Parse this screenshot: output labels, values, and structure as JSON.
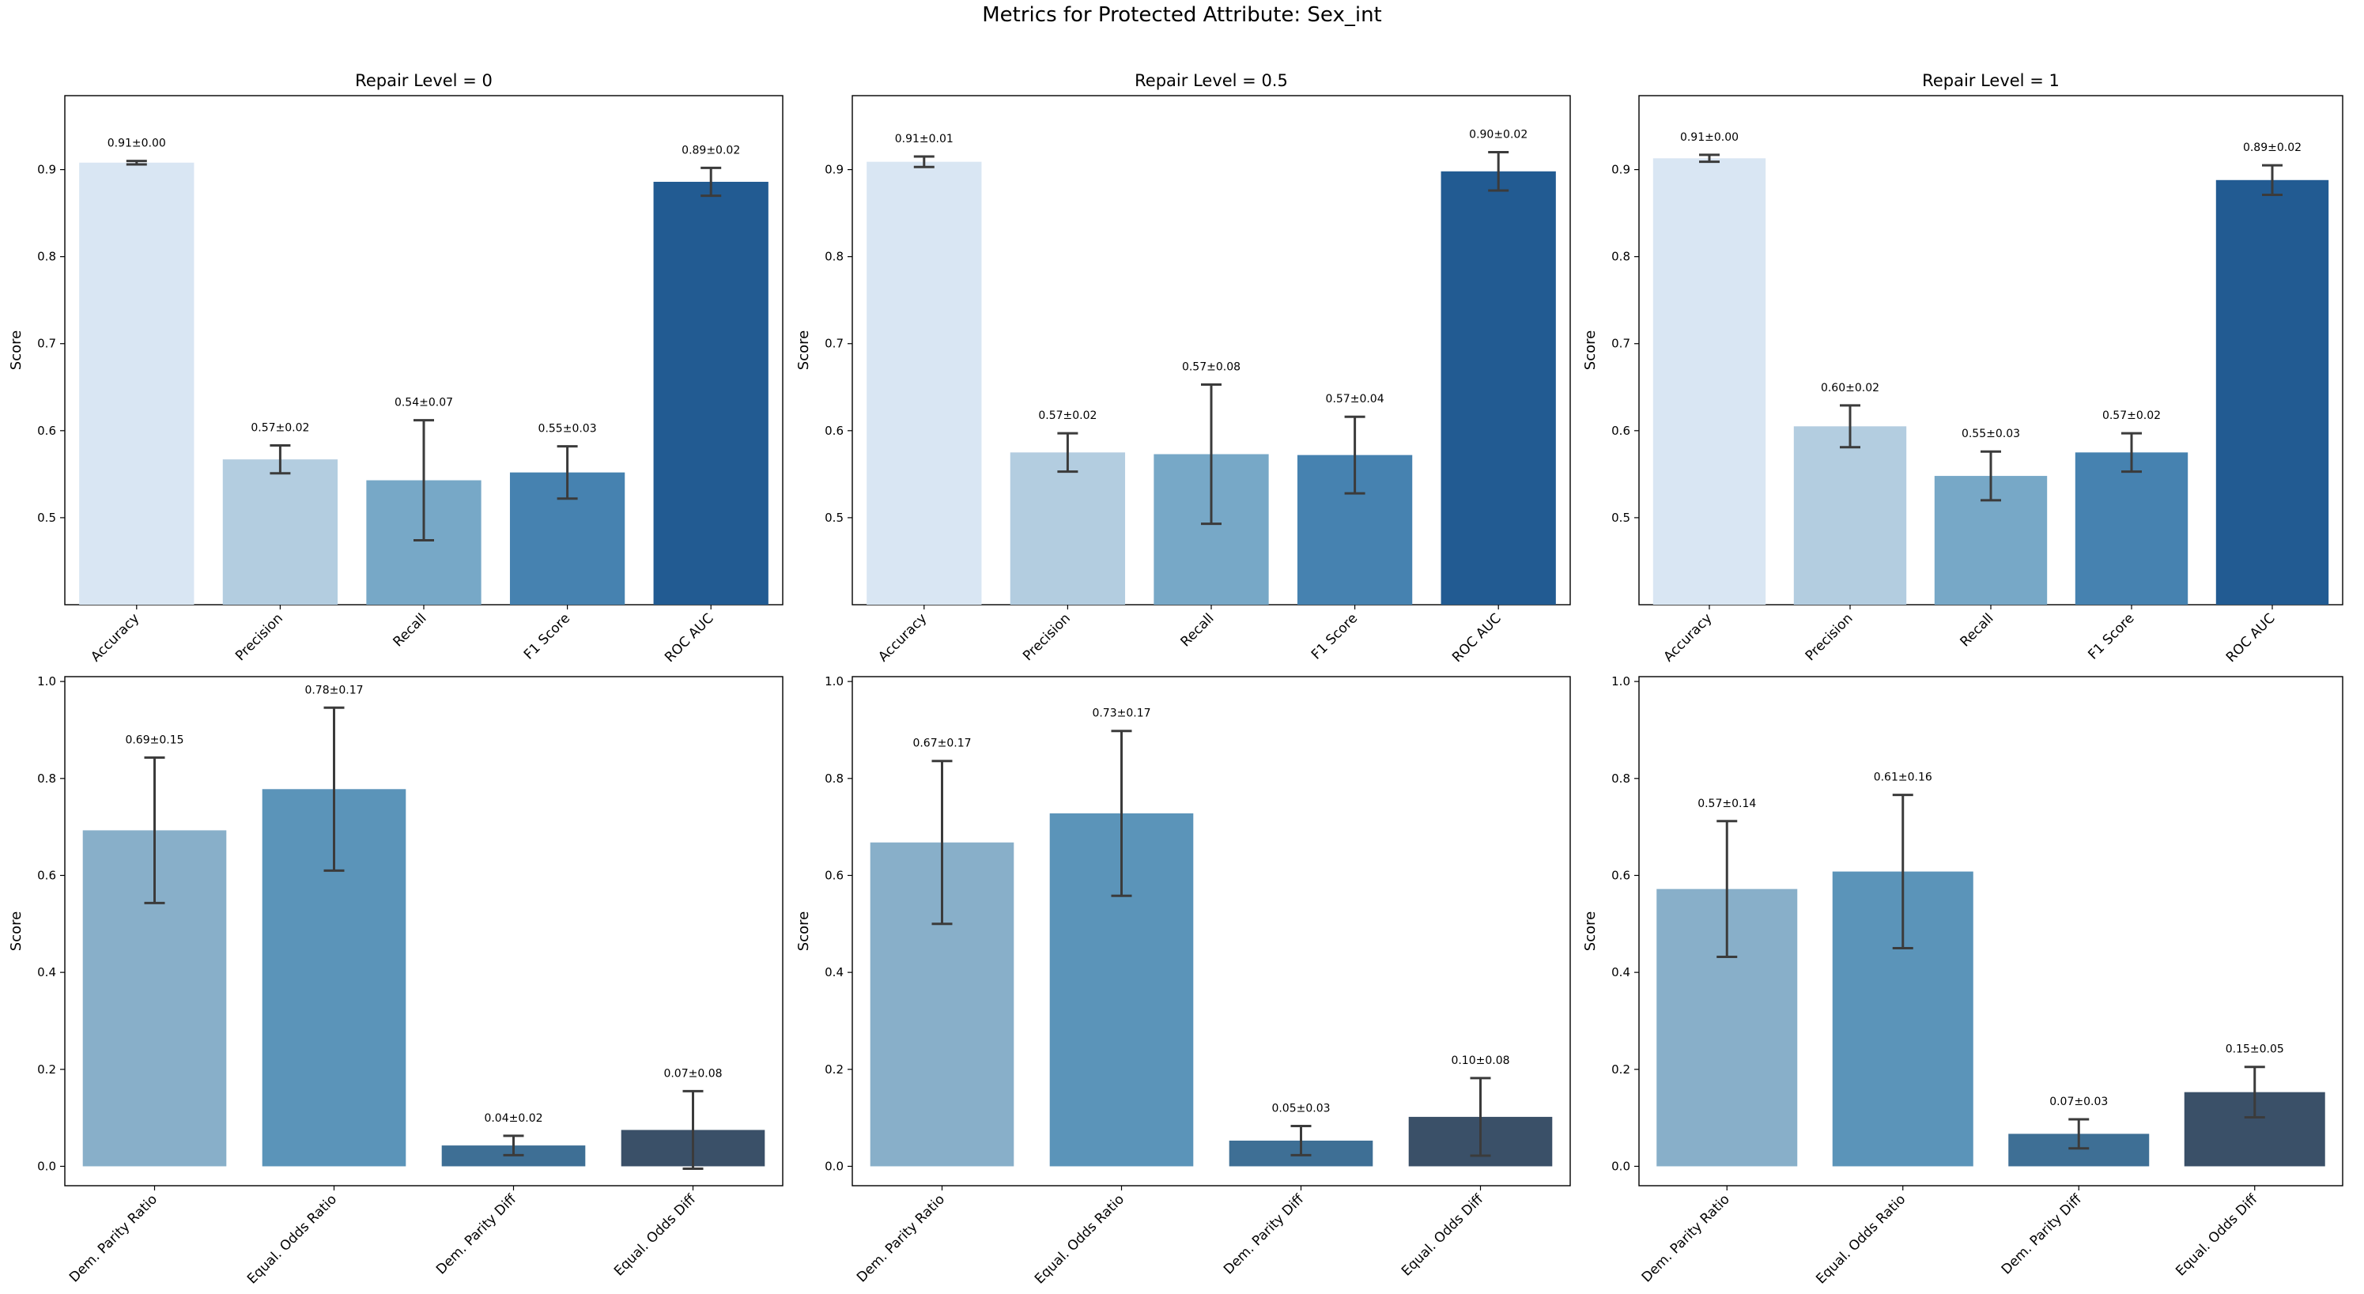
{
  "figure_title": "Metrics for Protected Attribute: Sex_int",
  "chart_data": [
    {
      "type": "bar",
      "row": "performance",
      "title": "Repair Level = 0",
      "ylabel": "Score",
      "ylim": [
        0.4,
        0.985
      ],
      "yticks": [
        0.5,
        0.6,
        0.7,
        0.8,
        0.9
      ],
      "categories": [
        "Accuracy",
        "Precision",
        "Recall",
        "F1 Score",
        "ROC AUC"
      ],
      "values": [
        0.908,
        0.567,
        0.543,
        0.552,
        0.886
      ],
      "errors": [
        0.002,
        0.016,
        0.069,
        0.03,
        0.016
      ],
      "labels": [
        "0.91±0.00",
        "0.57±0.02",
        "0.54±0.07",
        "0.55±0.03",
        "0.89±0.02"
      ],
      "colors": [
        "#d9e6f3",
        "#b3cde0",
        "#77a8c7",
        "#4682b0",
        "#225b92"
      ]
    },
    {
      "type": "bar",
      "row": "performance",
      "title": "Repair Level = 0.5",
      "ylabel": "Score",
      "ylim": [
        0.4,
        0.985
      ],
      "yticks": [
        0.5,
        0.6,
        0.7,
        0.8,
        0.9
      ],
      "categories": [
        "Accuracy",
        "Precision",
        "Recall",
        "F1 Score",
        "ROC AUC"
      ],
      "values": [
        0.909,
        0.575,
        0.573,
        0.572,
        0.898
      ],
      "errors": [
        0.006,
        0.022,
        0.08,
        0.044,
        0.022
      ],
      "labels": [
        "0.91±0.01",
        "0.57±0.02",
        "0.57±0.08",
        "0.57±0.04",
        "0.90±0.02"
      ],
      "colors": [
        "#d9e6f3",
        "#b3cde0",
        "#77a8c7",
        "#4682b0",
        "#225b92"
      ]
    },
    {
      "type": "bar",
      "row": "performance",
      "title": "Repair Level = 1",
      "ylabel": "Score",
      "ylim": [
        0.4,
        0.985
      ],
      "yticks": [
        0.5,
        0.6,
        0.7,
        0.8,
        0.9
      ],
      "categories": [
        "Accuracy",
        "Precision",
        "Recall",
        "F1 Score",
        "ROC AUC"
      ],
      "values": [
        0.913,
        0.605,
        0.548,
        0.575,
        0.888
      ],
      "errors": [
        0.004,
        0.024,
        0.028,
        0.022,
        0.017
      ],
      "labels": [
        "0.91±0.00",
        "0.60±0.02",
        "0.55±0.03",
        "0.57±0.02",
        "0.89±0.02"
      ],
      "colors": [
        "#d9e6f3",
        "#b3cde0",
        "#77a8c7",
        "#4682b0",
        "#225b92"
      ]
    },
    {
      "type": "bar",
      "row": "fairness",
      "title": "",
      "ylabel": "Score",
      "ylim": [
        -0.04,
        1.01
      ],
      "yticks": [
        0.0,
        0.2,
        0.4,
        0.6,
        0.8,
        1.0
      ],
      "categories": [
        "Dem. Parity Ratio",
        "Equal. Odds Ratio",
        "Dem. Parity Diff",
        "Equal. Odds Diff"
      ],
      "values": [
        0.693,
        0.778,
        0.043,
        0.075
      ],
      "errors": [
        0.15,
        0.168,
        0.02,
        0.08
      ],
      "labels": [
        "0.69±0.15",
        "0.78±0.17",
        "0.04±0.02",
        "0.07±0.08"
      ],
      "colors": [
        "#88afc9",
        "#5b94b9",
        "#3e6f95",
        "#3a5068"
      ]
    },
    {
      "type": "bar",
      "row": "fairness",
      "title": "",
      "ylabel": "Score",
      "ylim": [
        -0.04,
        1.01
      ],
      "yticks": [
        0.0,
        0.2,
        0.4,
        0.6,
        0.8,
        1.0
      ],
      "categories": [
        "Dem. Parity Ratio",
        "Equal. Odds Ratio",
        "Dem. Parity Diff",
        "Equal. Odds Diff"
      ],
      "values": [
        0.668,
        0.728,
        0.053,
        0.102
      ],
      "errors": [
        0.168,
        0.17,
        0.03,
        0.08
      ],
      "labels": [
        "0.67±0.17",
        "0.73±0.17",
        "0.05±0.03",
        "0.10±0.08"
      ],
      "colors": [
        "#88afc9",
        "#5b94b9",
        "#3e6f95",
        "#3a5068"
      ]
    },
    {
      "type": "bar",
      "row": "fairness",
      "title": "",
      "ylabel": "Score",
      "ylim": [
        -0.04,
        1.01
      ],
      "yticks": [
        0.0,
        0.2,
        0.4,
        0.6,
        0.8,
        1.0
      ],
      "categories": [
        "Dem. Parity Ratio",
        "Equal. Odds Ratio",
        "Dem. Parity Diff",
        "Equal. Odds Diff"
      ],
      "values": [
        0.572,
        0.608,
        0.067,
        0.153
      ],
      "errors": [
        0.14,
        0.158,
        0.03,
        0.052
      ],
      "labels": [
        "0.57±0.14",
        "0.61±0.16",
        "0.07±0.03",
        "0.15±0.05"
      ],
      "colors": [
        "#88afc9",
        "#5b94b9",
        "#3e6f95",
        "#3a5068"
      ]
    }
  ]
}
